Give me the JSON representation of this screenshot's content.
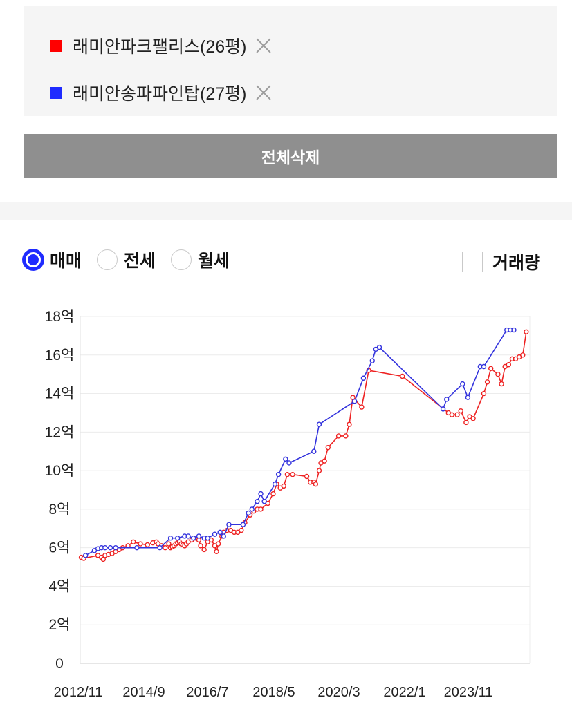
{
  "compare": {
    "items": [
      {
        "label": "래미안파크팰리스(26평)",
        "color": "#ff0000"
      },
      {
        "label": "래미안송파파인탑(27평)",
        "color": "#1f2bff"
      }
    ]
  },
  "clear_all_label": "전체삭제",
  "deal_types": [
    {
      "label": "매매",
      "checked": true
    },
    {
      "label": "전세",
      "checked": false
    },
    {
      "label": "월세",
      "checked": false
    }
  ],
  "volume_label": "거래량",
  "volume_checked": false,
  "chart_data": {
    "type": "line",
    "y_ticks": [
      "0",
      "2억",
      "4억",
      "6억",
      "8억",
      "10억",
      "12억",
      "14억",
      "16억",
      "18억"
    ],
    "ylim": [
      0,
      18
    ],
    "x_ticks": [
      "2012/11",
      "2014/9",
      "2016/7",
      "2018/5",
      "2020/3",
      "2022/1",
      "2023/11"
    ],
    "xlim": [
      2012.8,
      2025.5
    ],
    "grid": true,
    "series": [
      {
        "name": "래미안파크팰리스(26평)",
        "color": "#ee2222",
        "points": [
          [
            2012.83,
            5.5
          ],
          [
            2012.9,
            5.45
          ],
          [
            2013.3,
            5.6
          ],
          [
            2013.4,
            5.5
          ],
          [
            2013.45,
            5.4
          ],
          [
            2013.5,
            5.6
          ],
          [
            2013.6,
            5.65
          ],
          [
            2013.7,
            5.7
          ],
          [
            2013.8,
            5.8
          ],
          [
            2013.9,
            5.9
          ],
          [
            2014.0,
            6.0
          ],
          [
            2014.15,
            6.1
          ],
          [
            2014.3,
            6.3
          ],
          [
            2014.5,
            6.2
          ],
          [
            2014.7,
            6.15
          ],
          [
            2014.85,
            6.25
          ],
          [
            2014.95,
            6.3
          ],
          [
            2015.0,
            6.2
          ],
          [
            2015.1,
            6.1
          ],
          [
            2015.2,
            6.0
          ],
          [
            2015.3,
            6.2
          ],
          [
            2015.35,
            6.0
          ],
          [
            2015.4,
            6.05
          ],
          [
            2015.45,
            6.1
          ],
          [
            2015.5,
            6.2
          ],
          [
            2015.55,
            6.25
          ],
          [
            2015.6,
            6.3
          ],
          [
            2015.65,
            6.2
          ],
          [
            2015.7,
            6.15
          ],
          [
            2015.75,
            6.1
          ],
          [
            2015.8,
            6.2
          ],
          [
            2015.85,
            6.3
          ],
          [
            2015.95,
            6.4
          ],
          [
            2016.05,
            6.5
          ],
          [
            2016.15,
            6.4
          ],
          [
            2016.2,
            6.1
          ],
          [
            2016.3,
            5.9
          ],
          [
            2016.4,
            6.3
          ],
          [
            2016.5,
            6.4
          ],
          [
            2016.6,
            6.1
          ],
          [
            2016.65,
            5.8
          ],
          [
            2016.7,
            6.2
          ],
          [
            2016.8,
            6.6
          ],
          [
            2016.85,
            6.8
          ],
          [
            2016.95,
            6.9
          ],
          [
            2017.05,
            6.9
          ],
          [
            2017.15,
            6.8
          ],
          [
            2017.25,
            6.8
          ],
          [
            2017.35,
            6.9
          ],
          [
            2017.45,
            7.3
          ],
          [
            2017.6,
            7.7
          ],
          [
            2017.7,
            7.9
          ],
          [
            2017.8,
            8.0
          ],
          [
            2017.9,
            8.0
          ],
          [
            2018.1,
            8.3
          ],
          [
            2018.25,
            8.8
          ],
          [
            2018.35,
            9.3
          ],
          [
            2018.45,
            9.1
          ],
          [
            2018.55,
            9.2
          ],
          [
            2018.65,
            9.8
          ],
          [
            2018.8,
            9.8
          ],
          [
            2019.2,
            9.7
          ],
          [
            2019.3,
            9.4
          ],
          [
            2019.4,
            9.4
          ],
          [
            2019.45,
            9.3
          ],
          [
            2019.55,
            10.0
          ],
          [
            2019.6,
            10.4
          ],
          [
            2019.7,
            10.5
          ],
          [
            2019.8,
            11.2
          ],
          [
            2020.1,
            11.8
          ],
          [
            2020.3,
            11.8
          ],
          [
            2020.4,
            12.4
          ],
          [
            2020.5,
            13.8
          ],
          [
            2020.75,
            13.3
          ],
          [
            2020.95,
            15.2
          ],
          [
            2021.9,
            14.9
          ],
          [
            2023.2,
            13.0
          ],
          [
            2023.3,
            12.9
          ],
          [
            2023.45,
            12.9
          ],
          [
            2023.55,
            13.1
          ],
          [
            2023.7,
            12.5
          ],
          [
            2023.8,
            12.8
          ],
          [
            2023.9,
            12.7
          ],
          [
            2024.2,
            14.0
          ],
          [
            2024.3,
            14.6
          ],
          [
            2024.4,
            15.3
          ],
          [
            2024.6,
            15.0
          ],
          [
            2024.7,
            14.5
          ],
          [
            2024.8,
            15.4
          ],
          [
            2024.9,
            15.5
          ],
          [
            2025.0,
            15.8
          ],
          [
            2025.1,
            15.8
          ],
          [
            2025.2,
            15.9
          ],
          [
            2025.3,
            16.0
          ],
          [
            2025.4,
            17.2
          ]
        ]
      },
      {
        "name": "래미안송파파인탑(27평)",
        "color": "#3333dd",
        "points": [
          [
            2012.95,
            5.6
          ],
          [
            2013.2,
            5.85
          ],
          [
            2013.3,
            5.95
          ],
          [
            2013.4,
            6.0
          ],
          [
            2013.5,
            6.0
          ],
          [
            2013.65,
            6.0
          ],
          [
            2013.8,
            6.0
          ],
          [
            2014.4,
            6.0
          ],
          [
            2015.05,
            6.0
          ],
          [
            2015.35,
            6.5
          ],
          [
            2015.55,
            6.5
          ],
          [
            2015.75,
            6.6
          ],
          [
            2015.85,
            6.6
          ],
          [
            2016.0,
            6.5
          ],
          [
            2016.15,
            6.6
          ],
          [
            2016.3,
            6.5
          ],
          [
            2016.4,
            6.5
          ],
          [
            2016.6,
            6.7
          ],
          [
            2016.75,
            6.8
          ],
          [
            2016.85,
            6.6
          ],
          [
            2017.0,
            7.2
          ],
          [
            2017.4,
            7.2
          ],
          [
            2017.55,
            7.8
          ],
          [
            2017.65,
            8.0
          ],
          [
            2017.8,
            8.4
          ],
          [
            2017.9,
            8.8
          ],
          [
            2018.0,
            8.4
          ],
          [
            2018.3,
            9.3
          ],
          [
            2018.4,
            9.8
          ],
          [
            2018.6,
            10.6
          ],
          [
            2018.7,
            10.4
          ],
          [
            2019.4,
            11.0
          ],
          [
            2019.55,
            12.4
          ],
          [
            2020.55,
            13.6
          ],
          [
            2020.8,
            14.8
          ],
          [
            2021.05,
            15.7
          ],
          [
            2021.15,
            16.3
          ],
          [
            2021.25,
            16.4
          ],
          [
            2023.05,
            13.2
          ],
          [
            2023.15,
            13.7
          ],
          [
            2023.6,
            14.5
          ],
          [
            2023.75,
            13.8
          ],
          [
            2024.1,
            15.4
          ],
          [
            2024.2,
            15.4
          ],
          [
            2024.85,
            17.3
          ],
          [
            2024.95,
            17.3
          ],
          [
            2025.05,
            17.3
          ]
        ]
      }
    ]
  }
}
